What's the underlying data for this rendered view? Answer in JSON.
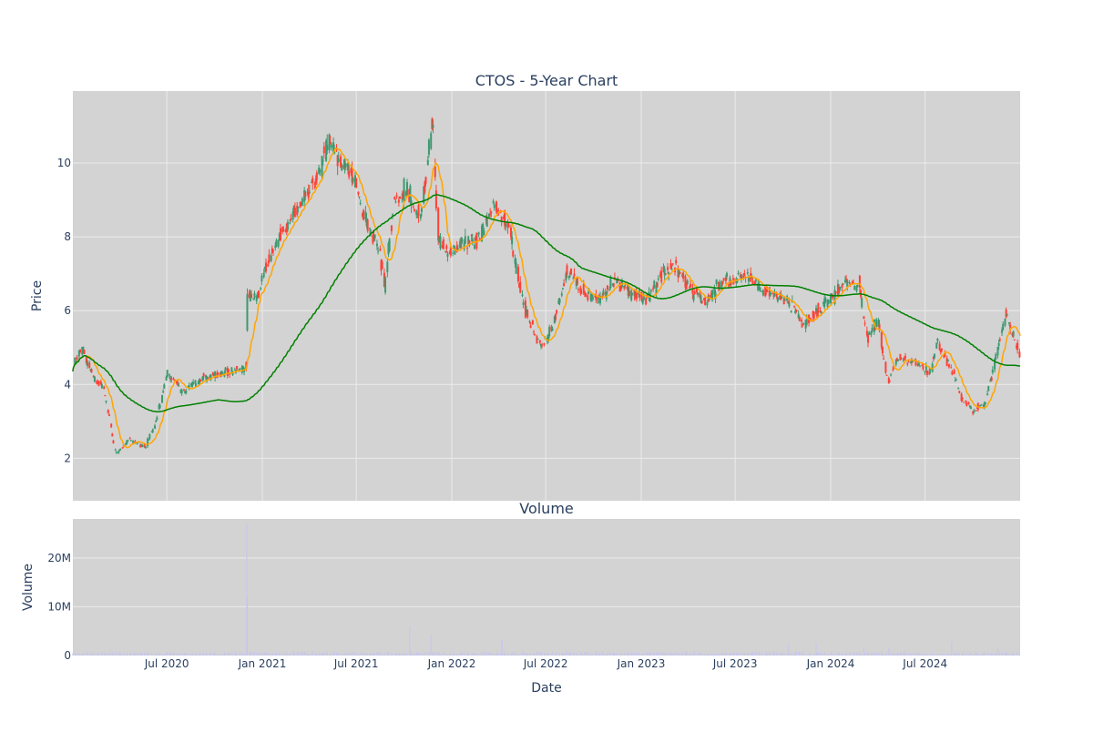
{
  "chart_data": [
    {
      "type": "candlestick",
      "title": "CTOS - 5-Year Chart",
      "xlabel": "",
      "ylabel": "Price",
      "ylim": [
        0.85,
        11.95
      ],
      "yticks": [
        2,
        4,
        6,
        8,
        10
      ],
      "grid": true,
      "legend": "none",
      "colors": {
        "background": "#d3d3d3",
        "grid": "#ebebeb",
        "increasing": "#3d9970",
        "decreasing": "#ff4136",
        "ma_short": "#ffa500",
        "ma_long": "#008000",
        "text": "#2a3f5f"
      },
      "price_anchors": [
        [
          "2020-01-02",
          4.5
        ],
        [
          "2020-01-20",
          5.0
        ],
        [
          "2020-02-10",
          4.2
        ],
        [
          "2020-03-01",
          3.9
        ],
        [
          "2020-03-25",
          2.1
        ],
        [
          "2020-04-20",
          2.5
        ],
        [
          "2020-05-20",
          2.3
        ],
        [
          "2020-06-10",
          3.0
        ],
        [
          "2020-07-01",
          4.3
        ],
        [
          "2020-08-01",
          3.8
        ],
        [
          "2020-09-01",
          4.1
        ],
        [
          "2020-10-01",
          4.3
        ],
        [
          "2020-11-20",
          4.4
        ],
        [
          "2020-12-01",
          4.5
        ],
        [
          "2020-12-03",
          6.5
        ],
        [
          "2020-12-20",
          6.3
        ],
        [
          "2021-01-10",
          7.3
        ],
        [
          "2021-02-10",
          8.2
        ],
        [
          "2021-03-15",
          8.9
        ],
        [
          "2021-04-15",
          9.6
        ],
        [
          "2021-05-10",
          10.6
        ],
        [
          "2021-06-01",
          10.0
        ],
        [
          "2021-06-25",
          9.7
        ],
        [
          "2021-07-15",
          8.6
        ],
        [
          "2021-08-10",
          7.8
        ],
        [
          "2021-08-25",
          6.7
        ],
        [
          "2021-09-10",
          8.8
        ],
        [
          "2021-10-05",
          9.3
        ],
        [
          "2021-11-01",
          8.5
        ],
        [
          "2021-11-25",
          11.1
        ],
        [
          "2021-12-05",
          8.0
        ],
        [
          "2021-12-25",
          7.5
        ],
        [
          "2022-01-20",
          7.8
        ],
        [
          "2022-02-20",
          7.9
        ],
        [
          "2022-03-20",
          8.9
        ],
        [
          "2022-04-20",
          8.3
        ],
        [
          "2022-05-10",
          6.8
        ],
        [
          "2022-05-25",
          5.9
        ],
        [
          "2022-06-20",
          5.0
        ],
        [
          "2022-07-15",
          5.6
        ],
        [
          "2022-08-10",
          7.1
        ],
        [
          "2022-09-10",
          6.5
        ],
        [
          "2022-10-10",
          6.3
        ],
        [
          "2022-11-10",
          6.8
        ],
        [
          "2022-12-10",
          6.5
        ],
        [
          "2023-01-10",
          6.3
        ],
        [
          "2023-02-10",
          7.0
        ],
        [
          "2023-03-05",
          7.2
        ],
        [
          "2023-04-05",
          6.6
        ],
        [
          "2023-05-05",
          6.2
        ],
        [
          "2023-06-05",
          6.8
        ],
        [
          "2023-07-05",
          6.9
        ],
        [
          "2023-07-25",
          6.9
        ],
        [
          "2023-08-20",
          6.6
        ],
        [
          "2023-09-20",
          6.4
        ],
        [
          "2023-10-20",
          6.1
        ],
        [
          "2023-11-10",
          5.6
        ],
        [
          "2023-12-05",
          6.0
        ],
        [
          "2024-01-05",
          6.4
        ],
        [
          "2024-02-01",
          6.7
        ],
        [
          "2024-02-25",
          6.7
        ],
        [
          "2024-03-10",
          5.3
        ],
        [
          "2024-04-01",
          5.7
        ],
        [
          "2024-04-20",
          4.0
        ],
        [
          "2024-05-10",
          4.7
        ],
        [
          "2024-06-10",
          4.6
        ],
        [
          "2024-07-10",
          4.3
        ],
        [
          "2024-07-25",
          5.1
        ],
        [
          "2024-08-20",
          4.4
        ],
        [
          "2024-09-10",
          3.6
        ],
        [
          "2024-10-01",
          3.3
        ],
        [
          "2024-10-25",
          3.5
        ],
        [
          "2024-11-05",
          4.2
        ],
        [
          "2024-11-20",
          5.1
        ],
        [
          "2024-12-05",
          6.0
        ],
        [
          "2024-12-15",
          5.4
        ],
        [
          "2024-12-31",
          4.8
        ]
      ],
      "series": [
        {
          "name": "",
          "kind": "candlestick",
          "freq": "2 trading days"
        },
        {
          "name": "",
          "kind": "moving-average",
          "window_days": 20,
          "color": "#ffa500"
        },
        {
          "name": "",
          "kind": "moving-average",
          "window_days": 200,
          "color": "#008000"
        }
      ]
    },
    {
      "type": "bar",
      "title": "Volume",
      "xlabel": "Date",
      "ylabel": "Volume",
      "ylim": [
        0,
        28000000
      ],
      "yticks": [
        0,
        10000000,
        20000000
      ],
      "ytick_labels": [
        "0",
        "10M",
        "20M"
      ],
      "xtick_labels": [
        "Jul 2020",
        "Jan 2021",
        "Jul 2021",
        "Jan 2022",
        "Jul 2022",
        "Jan 2023",
        "Jul 2023",
        "Jan 2024",
        "Jul 2024"
      ],
      "xticks": [
        "2020-07-01",
        "2021-01-01",
        "2021-07-01",
        "2022-01-01",
        "2022-07-01",
        "2023-01-01",
        "2023-07-01",
        "2024-01-01",
        "2024-07-01"
      ],
      "xlim": [
        "2020-01-02",
        "2024-12-31"
      ],
      "base_volume": 400000,
      "spikes": [
        [
          "2020-12-02",
          27000000
        ],
        [
          "2020-12-03",
          12000000
        ],
        [
          "2021-10-12",
          6000000
        ],
        [
          "2021-11-22",
          4200000
        ],
        [
          "2022-04-08",
          3200000
        ],
        [
          "2023-10-12",
          2300000
        ],
        [
          "2023-12-04",
          2600000
        ],
        [
          "2024-03-05",
          1800000
        ],
        [
          "2024-04-22",
          1600000
        ],
        [
          "2024-08-21",
          2800000
        ],
        [
          "2024-11-18",
          1500000
        ]
      ],
      "color": "#c7c7ea"
    }
  ]
}
